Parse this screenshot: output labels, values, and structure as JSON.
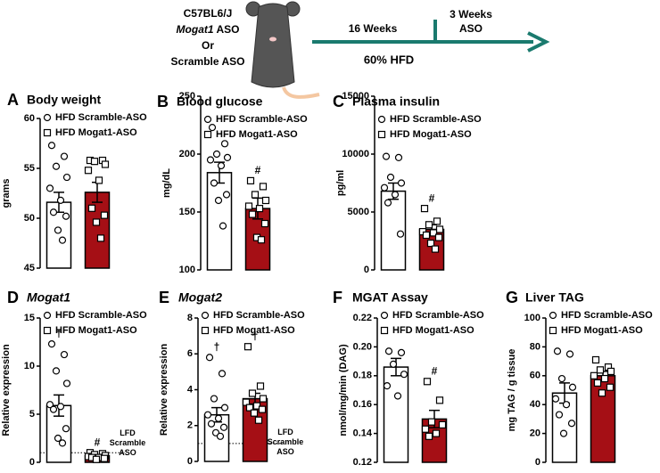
{
  "schematic": {
    "strain": "C57BL6/J",
    "line2": {
      "italic": "Mogat1",
      "rest": "ASO"
    },
    "or": "Or",
    "line4": "Scramble ASO",
    "period1": "16 Weeks",
    "period2a": "3 Weeks",
    "period2b": "ASO",
    "diet": "60% HFD"
  },
  "chart_data": [
    {
      "type": "bar",
      "panel": "A",
      "title": "Body weight",
      "ylabel": "grams",
      "ylim": [
        45,
        60
      ],
      "yticks": [
        45,
        50,
        55,
        60
      ],
      "series": [
        {
          "name": "HFD Scramble-ASO",
          "color": "#ffffff",
          "marker": "circle",
          "values": [
            51.6
          ],
          "errors": [
            1.0
          ],
          "points": [
            57.3,
            56.2,
            55.2,
            54.1,
            53.0,
            51.8,
            50.6,
            50.2,
            48.8,
            47.8
          ]
        },
        {
          "name": "HFD Mogat1-ASO",
          "color": "#a50f15",
          "marker": "square",
          "values": [
            52.6
          ],
          "errors": [
            1.0
          ],
          "points": [
            55.8,
            55.8,
            55.7,
            55.4,
            54.8,
            53.8,
            51.0,
            50.3,
            49.6,
            48.0
          ]
        }
      ]
    },
    {
      "type": "bar",
      "panel": "B",
      "title": "Blood glucose",
      "ylabel": "mg/dL",
      "ylim": [
        100,
        250
      ],
      "yticks": [
        100,
        150,
        200,
        250
      ],
      "series": [
        {
          "name": "HFD Scramble-ASO",
          "color": "#ffffff",
          "marker": "circle",
          "values": [
            184
          ],
          "errors": [
            9
          ],
          "points": [
            223,
            209,
            200,
            197,
            195,
            190,
            175,
            165,
            160,
            138
          ]
        },
        {
          "name": "HFD Mogat1-ASO",
          "color": "#a50f15",
          "marker": "square",
          "values": [
            153
          ],
          "errors": [
            9
          ],
          "annotation": "#",
          "points": [
            177,
            172,
            165,
            160,
            155,
            153,
            148,
            140,
            128,
            126
          ]
        }
      ]
    },
    {
      "type": "bar",
      "panel": "C",
      "title": "Plasma insulin",
      "ylabel": "pg/ml",
      "ylim": [
        0,
        15000
      ],
      "yticks": [
        0,
        5000,
        10000,
        15000
      ],
      "series": [
        {
          "name": "HFD Scramble-ASO",
          "color": "#ffffff",
          "marker": "circle",
          "values": [
            6800
          ],
          "errors": [
            700
          ],
          "points": [
            9800,
            9700,
            8000,
            7500,
            7100,
            6500,
            5800,
            3100
          ]
        },
        {
          "name": "HFD Mogat1-ASO",
          "color": "#a50f15",
          "marker": "square",
          "values": [
            3500
          ],
          "errors": [
            400
          ],
          "annotation": "#",
          "points": [
            5300,
            4200,
            3900,
            3500,
            3300,
            3200,
            3000,
            2800,
            2300,
            1800
          ]
        }
      ]
    },
    {
      "type": "bar",
      "panel": "D",
      "title": "Mogat1",
      "title_italic": true,
      "ylabel": "Relative expression",
      "ylim": [
        0,
        15
      ],
      "yticks": [
        0,
        5,
        10,
        15
      ],
      "reference": {
        "value": 1,
        "label": "LFD Scramble ASO"
      },
      "series": [
        {
          "name": "HFD Scramble-ASO",
          "color": "#ffffff",
          "marker": "circle",
          "values": [
            5.9
          ],
          "errors": [
            1.1
          ],
          "annotation": "†",
          "points": [
            12.3,
            11.2,
            9.5,
            8.2,
            6.0,
            5.8,
            5.5,
            3.5,
            2.5,
            2.0
          ]
        },
        {
          "name": "HFD Mogat1-ASO",
          "color": "#a50f15",
          "marker": "square",
          "values": [
            0.7
          ],
          "errors": [
            0.1
          ],
          "annotation": "#",
          "points": [
            1.0,
            0.9,
            0.8,
            0.7,
            0.6,
            0.5,
            0.5,
            0.4,
            0.3
          ]
        }
      ]
    },
    {
      "type": "bar",
      "panel": "E",
      "title": "Mogat2",
      "title_italic": true,
      "ylabel": "Relative expression",
      "ylim": [
        0,
        8
      ],
      "yticks": [
        0,
        2,
        4,
        6,
        8
      ],
      "reference": {
        "value": 1,
        "label": "LFD Scramble ASO"
      },
      "series": [
        {
          "name": "HFD Scramble-ASO",
          "color": "#ffffff",
          "marker": "circle",
          "values": [
            2.6
          ],
          "errors": [
            0.4
          ],
          "annotation": "†",
          "points": [
            5.8,
            4.9,
            3.5,
            3.0,
            2.6,
            2.4,
            2.1,
            1.9,
            1.6,
            1.4
          ]
        },
        {
          "name": "HFD Mogat1-ASO",
          "color": "#a50f15",
          "marker": "square",
          "values": [
            3.5
          ],
          "errors": [
            0.3
          ],
          "annotation": "†",
          "points": [
            6.4,
            4.2,
            3.8,
            3.5,
            3.3,
            3.1,
            3.0,
            2.9,
            2.7,
            2.3
          ]
        }
      ]
    },
    {
      "type": "bar",
      "panel": "F",
      "title": "MGAT Assay",
      "ylabel": "nmol/mg/min (DAG)",
      "ylim": [
        0.12,
        0.22
      ],
      "yticks": [
        0.12,
        0.14,
        0.16,
        0.18,
        {
          "value": 0.2,
          "label": "0.20"
        },
        0.22
      ],
      "series": [
        {
          "name": "HFD Scramble-ASO",
          "color": "#ffffff",
          "marker": "circle",
          "values": [
            0.186
          ],
          "errors": [
            0.006
          ],
          "points": [
            0.197,
            0.196,
            0.188,
            0.181,
            0.173,
            0.166
          ]
        },
        {
          "name": "HFD Mogat1-ASO",
          "color": "#a50f15",
          "marker": "square",
          "values": [
            0.15
          ],
          "errors": [
            0.006
          ],
          "annotation": "#",
          "points": [
            0.176,
            0.163,
            0.148,
            0.146,
            0.143,
            0.14,
            0.138
          ]
        }
      ]
    },
    {
      "type": "bar",
      "panel": "G",
      "title": "Liver TAG",
      "ylabel": "mg TAG / g tissue",
      "ylim": [
        0,
        100
      ],
      "yticks": [
        0,
        20,
        40,
        60,
        80,
        100
      ],
      "series": [
        {
          "name": "HFD Scramble-ASO",
          "color": "#ffffff",
          "marker": "circle",
          "values": [
            48
          ],
          "errors": [
            7
          ],
          "points": [
            77,
            75,
            58,
            52,
            44,
            40,
            33,
            27,
            20
          ]
        },
        {
          "name": "HFD Mogat1-ASO",
          "color": "#a50f15",
          "marker": "square",
          "values": [
            60
          ],
          "errors": [
            3
          ],
          "points": [
            71,
            66,
            64,
            63,
            60,
            58,
            55,
            52,
            48
          ]
        }
      ]
    }
  ]
}
